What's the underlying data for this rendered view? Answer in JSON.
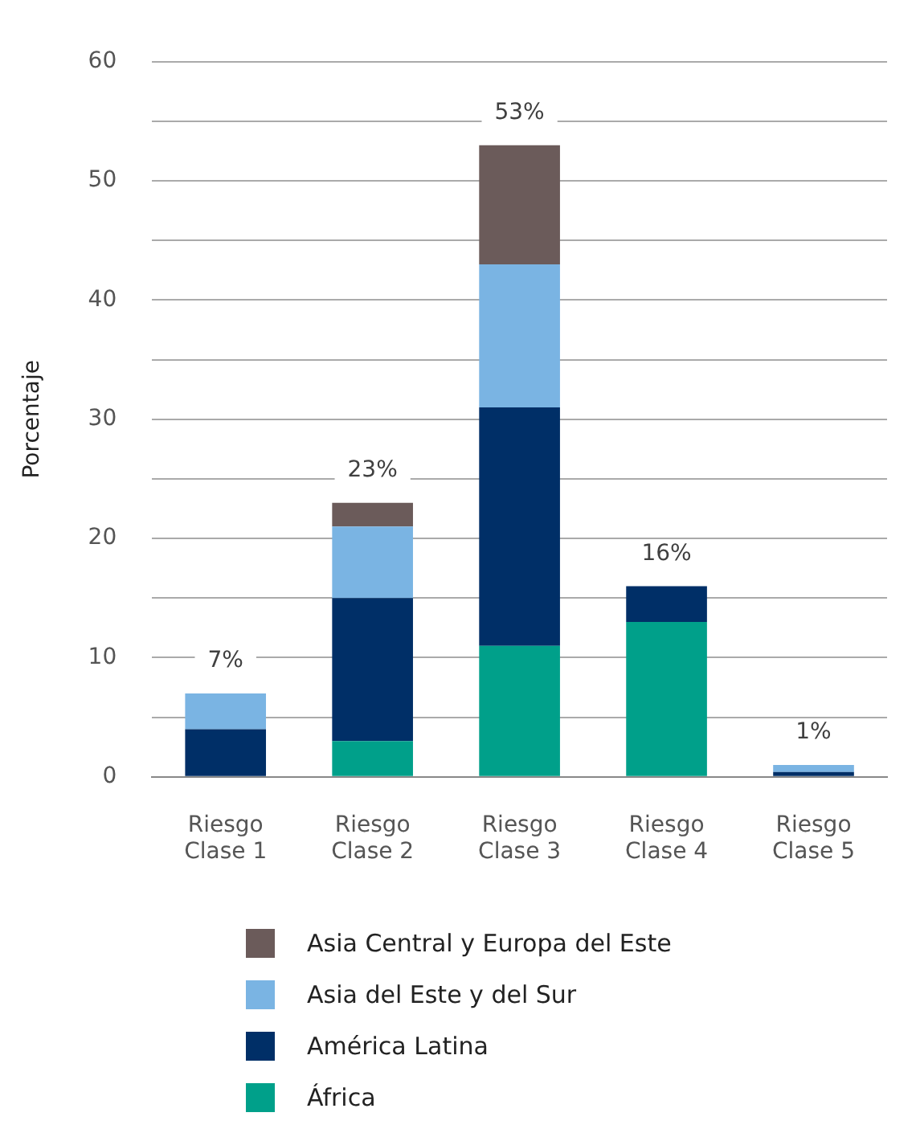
{
  "chart_data": {
    "type": "bar",
    "stacked": true,
    "ylabel": "Porcentaje",
    "categories": [
      "Riesgo Clase 1",
      "Riesgo Clase 2",
      "Riesgo Clase 3",
      "Riesgo Clase 4",
      "Riesgo Clase 5"
    ],
    "series": [
      {
        "name": "África",
        "color": "#00a08a",
        "values": [
          0,
          3,
          11,
          13,
          0
        ]
      },
      {
        "name": "América Latina",
        "color": "#002f67",
        "values": [
          4,
          12,
          20,
          3,
          0.4
        ]
      },
      {
        "name": "Asia del Este y del Sur",
        "color": "#7ab4e3",
        "values": [
          3,
          6,
          12,
          0,
          0.6
        ]
      },
      {
        "name": "Asia Central y Europa del Este",
        "color": "#6b5b5a",
        "values": [
          0,
          2,
          10,
          0,
          0
        ]
      }
    ],
    "totals": [
      "7%",
      "23%",
      "53%",
      "16%",
      "1%"
    ],
    "ylim": [
      0,
      60
    ],
    "yticks": [
      0,
      {
        "value": 5,
        "label": null
      },
      10,
      {
        "value": 15,
        "label": null
      },
      20,
      {
        "value": 25,
        "label": null
      },
      30,
      {
        "value": 35,
        "label": null
      },
      40,
      {
        "value": 45,
        "label": null
      },
      50,
      {
        "value": 55,
        "label": null
      },
      60
    ],
    "grid": "y",
    "legend": "bottom"
  }
}
